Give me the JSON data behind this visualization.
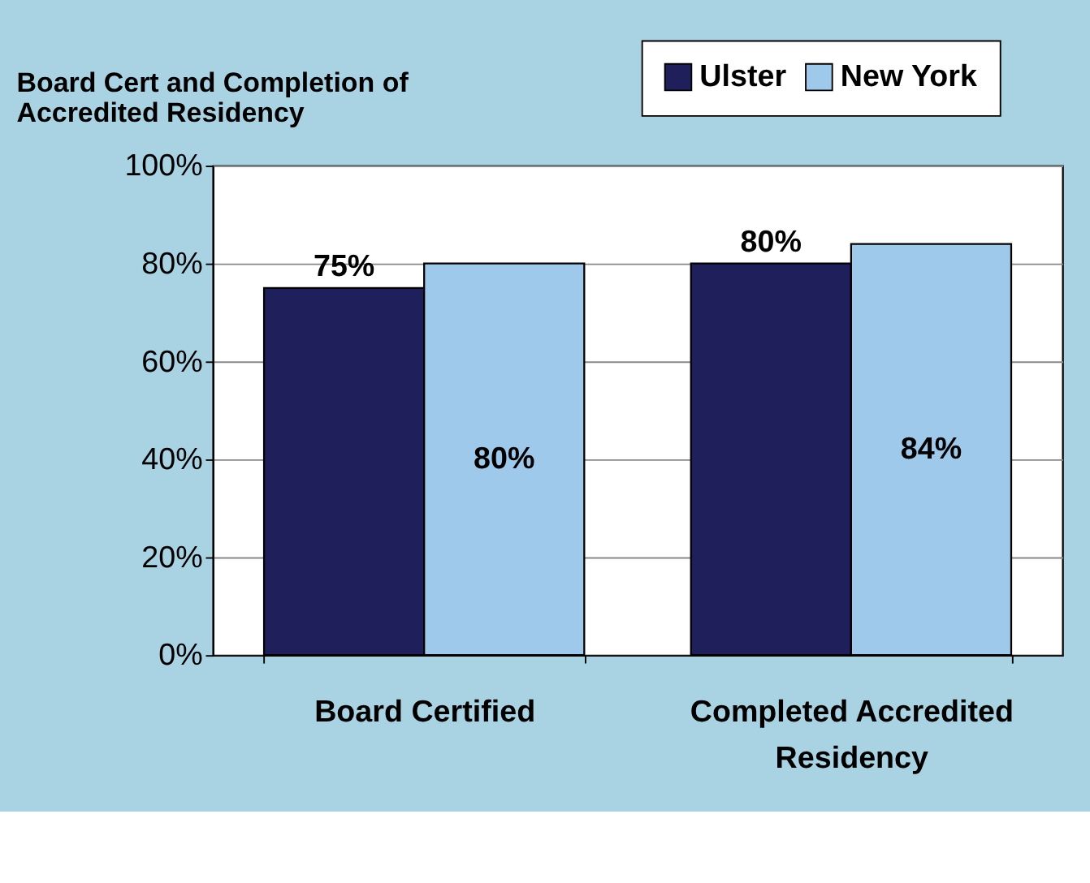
{
  "chart_data": {
    "type": "bar",
    "title": "Board Cert and Completion of\nAccredited Residency",
    "categories": [
      "Board Certified",
      "Completed Accredited Residency"
    ],
    "series": [
      {
        "name": "Ulster",
        "color": "#1f1f5c",
        "values": [
          75,
          80
        ],
        "value_labels": [
          "75%",
          "80%"
        ]
      },
      {
        "name": "New York",
        "color": "#9ec9ea",
        "values": [
          80,
          84
        ],
        "value_labels": [
          "80%",
          "84%"
        ]
      }
    ],
    "ylim": [
      0,
      100
    ],
    "yticks": [
      {
        "value": 0,
        "label": "0%"
      },
      {
        "value": 20,
        "label": "20%"
      },
      {
        "value": 40,
        "label": "40%"
      },
      {
        "value": 60,
        "label": "60%"
      },
      {
        "value": 80,
        "label": "80%"
      },
      {
        "value": 100,
        "label": "100%"
      }
    ],
    "grid": "y",
    "legend": "top right"
  }
}
